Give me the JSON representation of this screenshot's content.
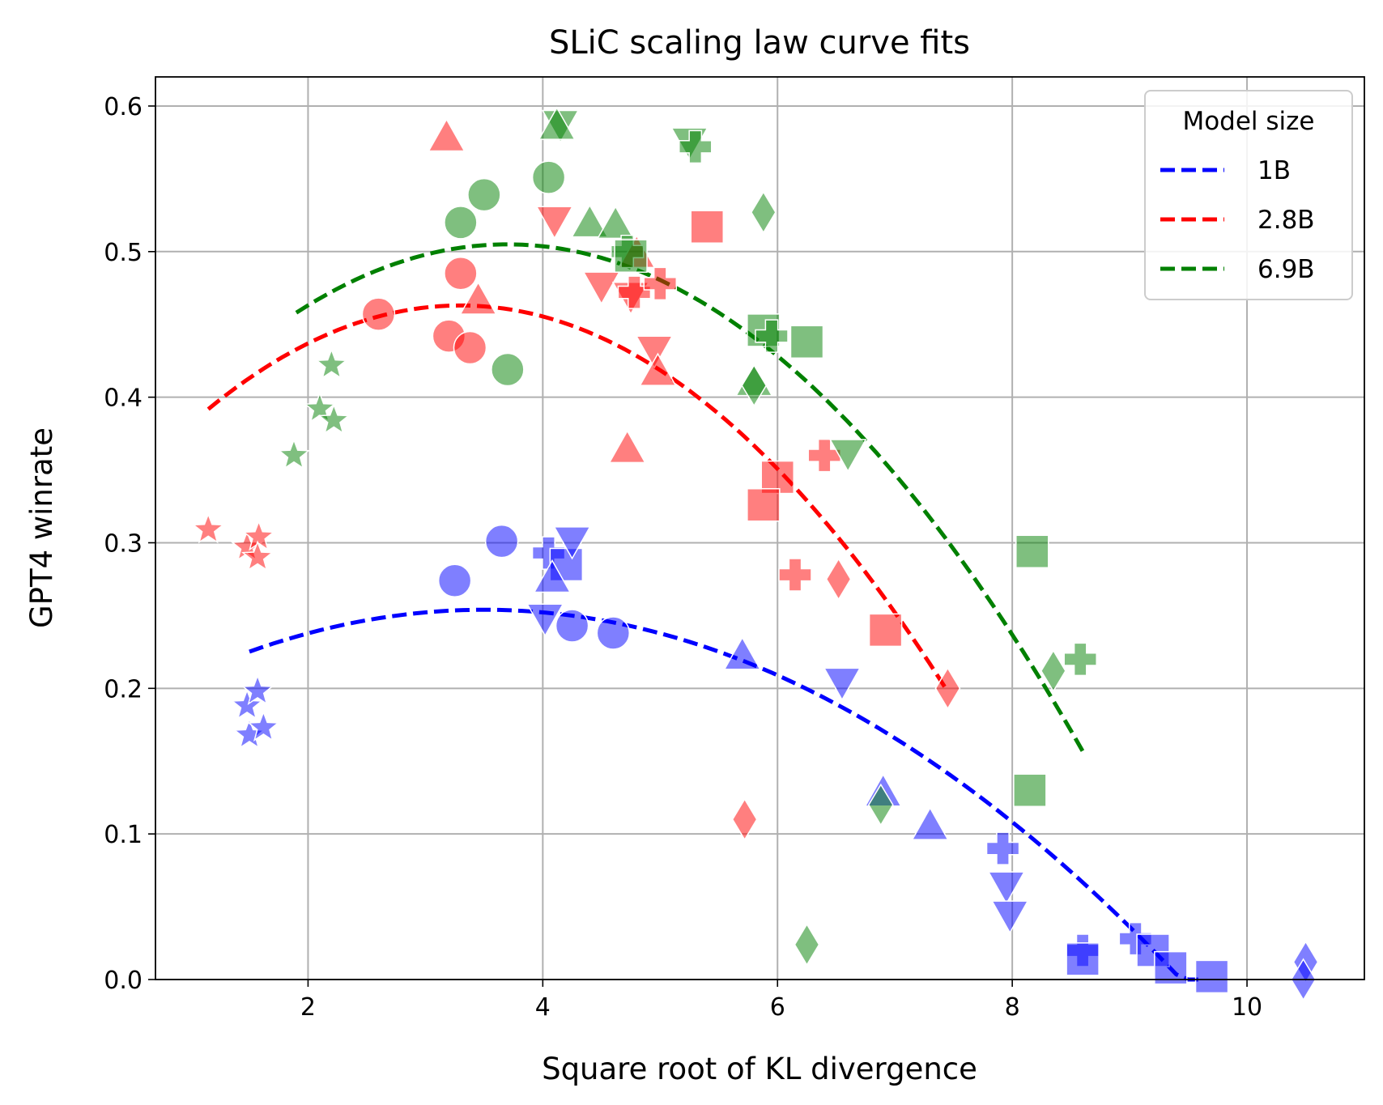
{
  "chart_data": {
    "type": "scatter",
    "title": "SLiC scaling law curve fits",
    "xlabel": "Square root of KL divergence",
    "ylabel": "GPT4 winrate",
    "xlim": [
      0.7,
      11.0
    ],
    "ylim": [
      0.0,
      0.62
    ],
    "xticks": [
      "2",
      "4",
      "6",
      "8",
      "10"
    ],
    "yticks": [
      "0.0",
      "0.1",
      "0.2",
      "0.3",
      "0.4",
      "0.5",
      "0.6"
    ],
    "grid": true,
    "legend": {
      "title": "Model size",
      "position": "top-right",
      "entries": [
        {
          "label": "1B",
          "color": "#0000ff"
        },
        {
          "label": "2.8B",
          "color": "#ff0000"
        },
        {
          "label": "6.9B",
          "color": "#008000"
        }
      ]
    },
    "fits": [
      {
        "name": "1B",
        "color": "#0000ff",
        "x_range": [
          1.5,
          9.6
        ],
        "peak_x": 3.5,
        "peak_y": 0.254,
        "curvature": 0.0072
      },
      {
        "name": "2.8B",
        "color": "#ff0000",
        "x_range": [
          1.15,
          7.45
        ],
        "peak_x": 3.3,
        "peak_y": 0.463,
        "curvature": 0.0154
      },
      {
        "name": "6.9B",
        "color": "#008000",
        "x_range": [
          1.9,
          8.6
        ],
        "peak_x": 3.7,
        "peak_y": 0.505,
        "curvature": 0.0145
      }
    ],
    "series": [
      {
        "name": "1B",
        "color": "#0000ff",
        "points": [
          {
            "x": 1.5,
            "y": 0.168,
            "m": "star"
          },
          {
            "x": 1.62,
            "y": 0.173,
            "m": "star"
          },
          {
            "x": 1.48,
            "y": 0.188,
            "m": "star"
          },
          {
            "x": 1.57,
            "y": 0.198,
            "m": "star"
          },
          {
            "x": 3.25,
            "y": 0.274,
            "m": "circle"
          },
          {
            "x": 3.65,
            "y": 0.301,
            "m": "circle"
          },
          {
            "x": 4.25,
            "y": 0.243,
            "m": "circle"
          },
          {
            "x": 4.6,
            "y": 0.238,
            "m": "circle"
          },
          {
            "x": 4.02,
            "y": 0.249,
            "m": "tri_down"
          },
          {
            "x": 4.05,
            "y": 0.293,
            "m": "plus"
          },
          {
            "x": 4.2,
            "y": 0.285,
            "m": "square"
          },
          {
            "x": 4.08,
            "y": 0.275,
            "m": "triangle"
          },
          {
            "x": 4.25,
            "y": 0.302,
            "m": "tri_down"
          },
          {
            "x": 5.7,
            "y": 0.222,
            "m": "triangle"
          },
          {
            "x": 6.55,
            "y": 0.205,
            "m": "tri_down"
          },
          {
            "x": 6.9,
            "y": 0.128,
            "m": "triangle"
          },
          {
            "x": 7.3,
            "y": 0.105,
            "m": "triangle"
          },
          {
            "x": 7.92,
            "y": 0.09,
            "m": "plus"
          },
          {
            "x": 7.95,
            "y": 0.065,
            "m": "tri_down"
          },
          {
            "x": 7.98,
            "y": 0.045,
            "m": "tri_down"
          },
          {
            "x": 8.6,
            "y": 0.02,
            "m": "plus"
          },
          {
            "x": 8.6,
            "y": 0.014,
            "m": "square"
          },
          {
            "x": 9.05,
            "y": 0.028,
            "m": "plus"
          },
          {
            "x": 9.2,
            "y": 0.02,
            "m": "square"
          },
          {
            "x": 9.35,
            "y": 0.008,
            "m": "square"
          },
          {
            "x": 9.7,
            "y": 0.002,
            "m": "square"
          },
          {
            "x": 10.5,
            "y": 0.012,
            "m": "diamond"
          },
          {
            "x": 10.48,
            "y": 0.0,
            "m": "diamond"
          }
        ]
      },
      {
        "name": "2.8B",
        "color": "#ff0000",
        "points": [
          {
            "x": 1.15,
            "y": 0.309,
            "m": "star"
          },
          {
            "x": 1.48,
            "y": 0.297,
            "m": "star"
          },
          {
            "x": 1.58,
            "y": 0.304,
            "m": "star"
          },
          {
            "x": 1.57,
            "y": 0.29,
            "m": "star"
          },
          {
            "x": 2.6,
            "y": 0.457,
            "m": "circle"
          },
          {
            "x": 3.2,
            "y": 0.442,
            "m": "circle"
          },
          {
            "x": 3.3,
            "y": 0.485,
            "m": "circle"
          },
          {
            "x": 3.38,
            "y": 0.434,
            "m": "circle"
          },
          {
            "x": 3.18,
            "y": 0.578,
            "m": "triangle"
          },
          {
            "x": 3.45,
            "y": 0.466,
            "m": "triangle"
          },
          {
            "x": 4.1,
            "y": 0.522,
            "m": "tri_down"
          },
          {
            "x": 4.5,
            "y": 0.477,
            "m": "tri_down"
          },
          {
            "x": 4.75,
            "y": 0.47,
            "m": "tri_down"
          },
          {
            "x": 4.8,
            "y": 0.498,
            "m": "triangle"
          },
          {
            "x": 4.78,
            "y": 0.472,
            "m": "plus"
          },
          {
            "x": 5.0,
            "y": 0.478,
            "m": "plus"
          },
          {
            "x": 4.95,
            "y": 0.433,
            "m": "tri_down"
          },
          {
            "x": 4.98,
            "y": 0.417,
            "m": "triangle"
          },
          {
            "x": 4.72,
            "y": 0.364,
            "m": "triangle"
          },
          {
            "x": 5.4,
            "y": 0.517,
            "m": "square"
          },
          {
            "x": 6.0,
            "y": 0.345,
            "m": "square"
          },
          {
            "x": 5.88,
            "y": 0.326,
            "m": "square"
          },
          {
            "x": 6.4,
            "y": 0.36,
            "m": "plus"
          },
          {
            "x": 6.15,
            "y": 0.278,
            "m": "plus"
          },
          {
            "x": 6.52,
            "y": 0.275,
            "m": "diamond"
          },
          {
            "x": 6.92,
            "y": 0.24,
            "m": "square"
          },
          {
            "x": 7.45,
            "y": 0.2,
            "m": "diamond"
          },
          {
            "x": 5.72,
            "y": 0.11,
            "m": "diamond"
          }
        ]
      },
      {
        "name": "6.9B",
        "color": "#008000",
        "points": [
          {
            "x": 1.88,
            "y": 0.36,
            "m": "star"
          },
          {
            "x": 2.1,
            "y": 0.392,
            "m": "star"
          },
          {
            "x": 2.22,
            "y": 0.384,
            "m": "star"
          },
          {
            "x": 2.2,
            "y": 0.422,
            "m": "star"
          },
          {
            "x": 3.3,
            "y": 0.52,
            "m": "circle"
          },
          {
            "x": 3.5,
            "y": 0.539,
            "m": "circle"
          },
          {
            "x": 3.7,
            "y": 0.419,
            "m": "circle"
          },
          {
            "x": 4.05,
            "y": 0.551,
            "m": "circle"
          },
          {
            "x": 4.15,
            "y": 0.588,
            "m": "tri_down"
          },
          {
            "x": 4.12,
            "y": 0.586,
            "m": "triangle"
          },
          {
            "x": 4.4,
            "y": 0.519,
            "m": "triangle"
          },
          {
            "x": 4.62,
            "y": 0.518,
            "m": "triangle"
          },
          {
            "x": 4.72,
            "y": 0.5,
            "m": "plus"
          },
          {
            "x": 4.75,
            "y": 0.497,
            "m": "square"
          },
          {
            "x": 5.25,
            "y": 0.576,
            "m": "tri_down"
          },
          {
            "x": 5.3,
            "y": 0.572,
            "m": "plus"
          },
          {
            "x": 5.88,
            "y": 0.527,
            "m": "diamond"
          },
          {
            "x": 5.88,
            "y": 0.446,
            "m": "square"
          },
          {
            "x": 5.95,
            "y": 0.442,
            "m": "plus"
          },
          {
            "x": 6.25,
            "y": 0.438,
            "m": "square"
          },
          {
            "x": 5.8,
            "y": 0.41,
            "m": "triangle"
          },
          {
            "x": 5.8,
            "y": 0.408,
            "m": "diamond"
          },
          {
            "x": 6.6,
            "y": 0.362,
            "m": "tri_down"
          },
          {
            "x": 8.17,
            "y": 0.294,
            "m": "square"
          },
          {
            "x": 8.35,
            "y": 0.212,
            "m": "diamond"
          },
          {
            "x": 8.58,
            "y": 0.22,
            "m": "plus"
          },
          {
            "x": 8.15,
            "y": 0.13,
            "m": "square"
          },
          {
            "x": 6.88,
            "y": 0.12,
            "m": "diamond"
          },
          {
            "x": 6.25,
            "y": 0.024,
            "m": "diamond"
          }
        ]
      }
    ]
  }
}
